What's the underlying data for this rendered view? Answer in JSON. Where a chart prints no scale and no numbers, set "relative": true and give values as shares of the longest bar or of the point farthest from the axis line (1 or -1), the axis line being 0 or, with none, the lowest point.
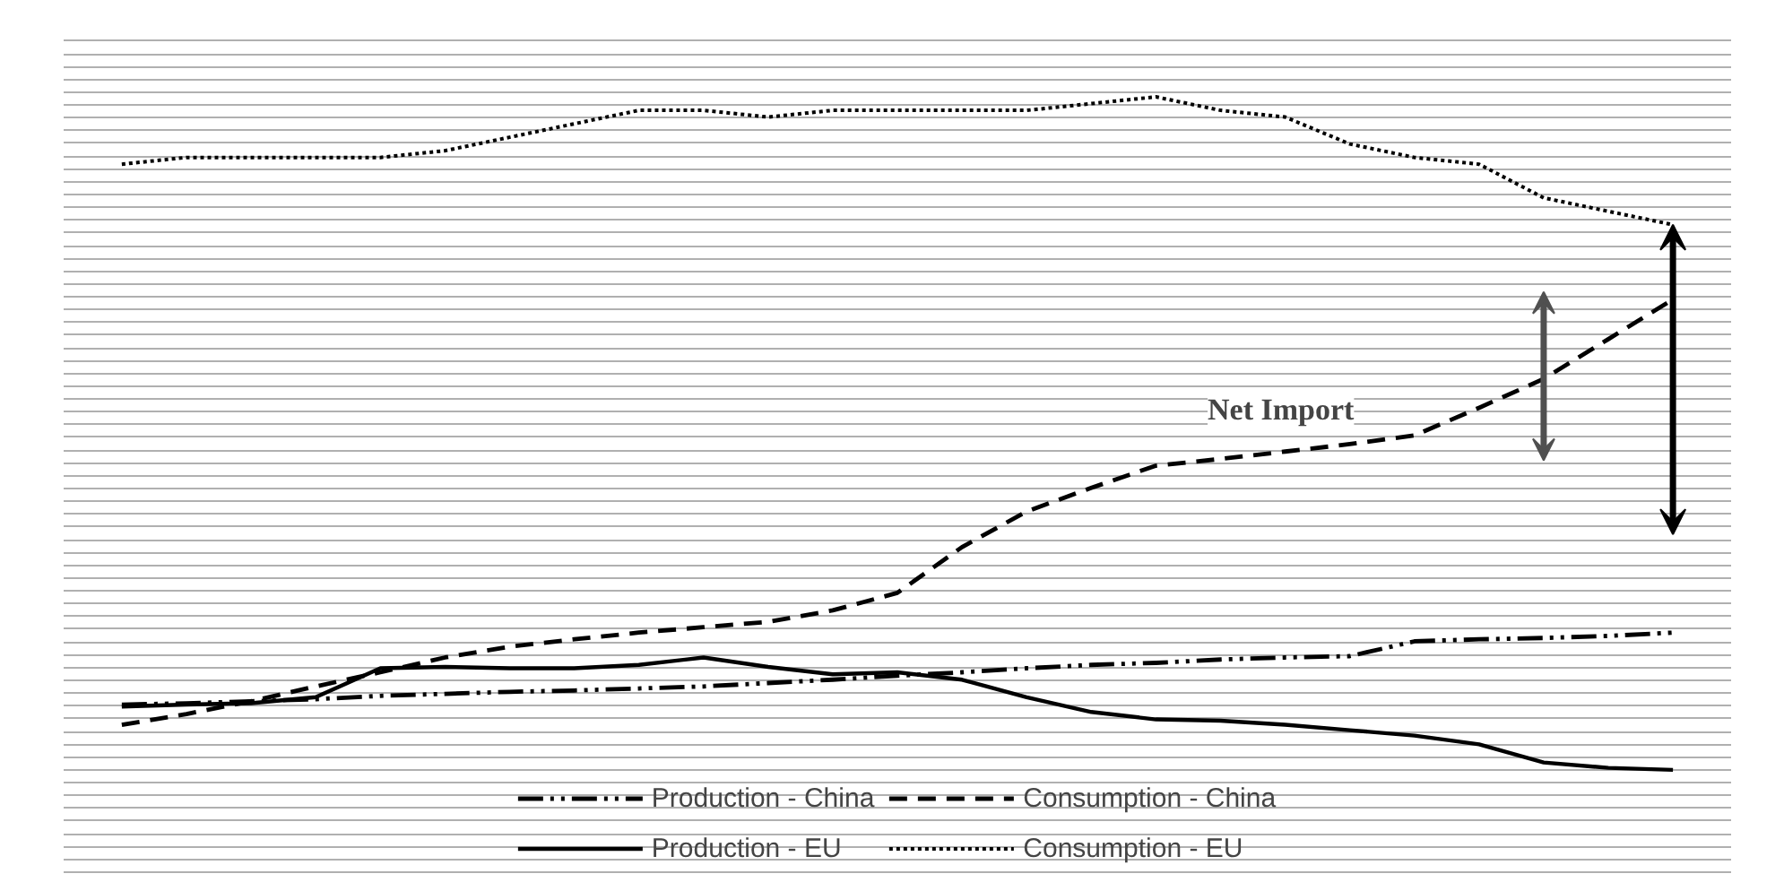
{
  "chart_data": {
    "type": "line",
    "relative": true,
    "categories": [
      null,
      null,
      null,
      null,
      null,
      null,
      null,
      null,
      null,
      null,
      null,
      null,
      null,
      null,
      null,
      null,
      null,
      null,
      null,
      null,
      null,
      null,
      null,
      null,
      null
    ],
    "series": [
      {
        "name": "Production - China",
        "color": "#000000",
        "line_style": "dashdot",
        "values": [
          0.097,
          0.099,
          0.102,
          0.105,
          0.11,
          0.113,
          0.116,
          0.118,
          0.121,
          0.124,
          0.129,
          0.134,
          0.14,
          0.145,
          0.151,
          0.156,
          0.159,
          0.164,
          0.167,
          0.169,
          0.191,
          0.194,
          0.196,
          0.199,
          0.204
        ]
      },
      {
        "name": "Production - EU",
        "color": "#000000",
        "line_style": "solid",
        "values": [
          0.094,
          0.097,
          0.099,
          0.108,
          0.151,
          0.153,
          0.151,
          0.151,
          0.156,
          0.167,
          0.153,
          0.142,
          0.145,
          0.134,
          0.108,
          0.086,
          0.075,
          0.073,
          0.067,
          0.059,
          0.051,
          0.038,
          0.011,
          0.003,
          0
        ]
      },
      {
        "name": "Consumption - China",
        "color": "#000000",
        "line_style": "dashed",
        "values": [
          0.067,
          0.083,
          0.102,
          0.124,
          0.145,
          0.167,
          0.183,
          0.194,
          0.204,
          0.212,
          0.22,
          0.237,
          0.263,
          0.331,
          0.384,
          0.419,
          0.452,
          0.462,
          0.473,
          0.484,
          0.497,
          0.538,
          0.581,
          0.64,
          0.699
        ]
      },
      {
        "name": "Consumption - EU",
        "color": "#000000",
        "line_style": "dotted",
        "values": [
          0.9,
          0.91,
          0.91,
          0.91,
          0.91,
          0.92,
          0.94,
          0.96,
          0.98,
          0.98,
          0.97,
          0.98,
          0.98,
          0.98,
          0.98,
          0.99,
          1.0,
          0.98,
          0.97,
          0.93,
          0.91,
          0.9,
          0.85,
          0.83,
          0.81
        ]
      }
    ],
    "annotations": [
      "Net Import"
    ],
    "grid": "y",
    "legend": "bottom"
  }
}
